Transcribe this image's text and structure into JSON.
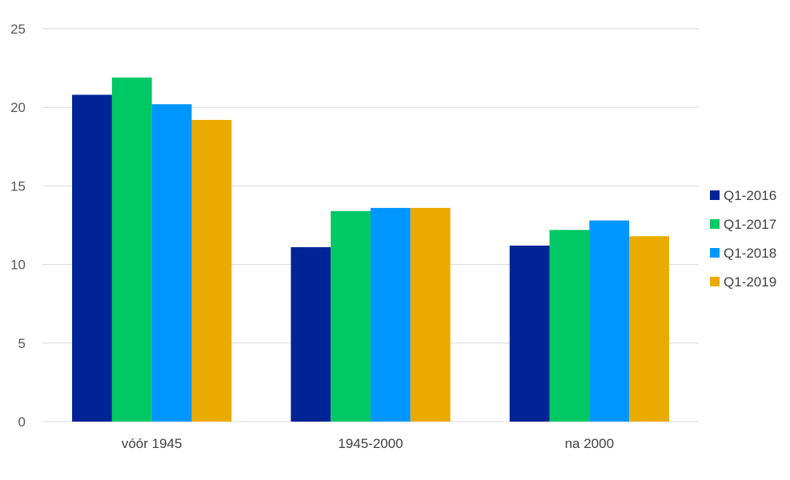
{
  "chart_data": {
    "type": "bar",
    "categories": [
      "vóór 1945",
      "1945-2000",
      "na 2000"
    ],
    "series": [
      {
        "name": "Q1-2016",
        "color": "#002395",
        "values": [
          20.8,
          11.1,
          11.2
        ]
      },
      {
        "name": "Q1-2017",
        "color": "#00C864",
        "values": [
          21.9,
          13.4,
          12.2
        ]
      },
      {
        "name": "Q1-2018",
        "color": "#0096FF",
        "values": [
          20.2,
          13.6,
          12.8
        ]
      },
      {
        "name": "Q1-2019",
        "color": "#EBAA00",
        "values": [
          19.2,
          13.6,
          11.8
        ]
      }
    ],
    "y_ticks": [
      "0",
      "5",
      "10",
      "15",
      "20",
      "25"
    ],
    "ylim": [
      0,
      25
    ],
    "grid": true,
    "legend_position": "right"
  }
}
